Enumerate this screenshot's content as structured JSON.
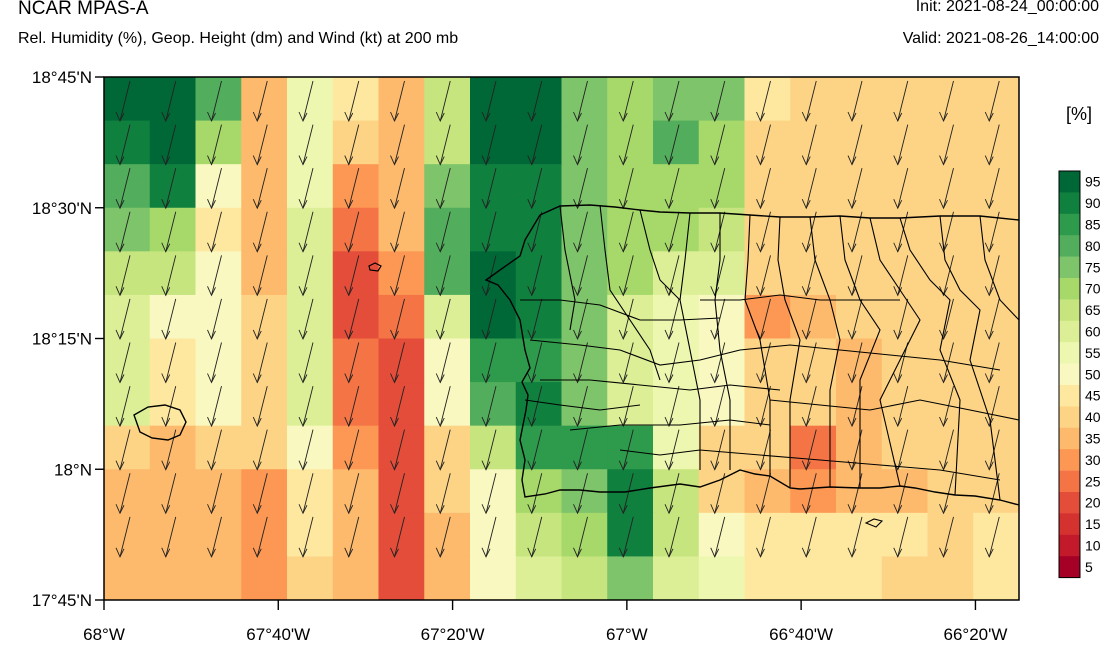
{
  "header": {
    "title": "NCAR MPAS-A",
    "subtitle": "Rel. Humidity (%), Geop. Height (dm) and Wind (kt) at 200 mb",
    "init": "Init: 2021-08-24_00:00:00",
    "valid": "Valid: 2021-08-26_14:00:00"
  },
  "map": {
    "lat_range": [
      17.75,
      18.75
    ],
    "lon_range": [
      -68.0,
      -66.25
    ],
    "lat_ticks": [
      {
        "value": 18.75,
        "label": "18°45'N"
      },
      {
        "value": 18.5,
        "label": "18°30'N"
      },
      {
        "value": 18.25,
        "label": "18°15'N"
      },
      {
        "value": 18.0,
        "label": "18°N"
      },
      {
        "value": 17.75,
        "label": "17°45'N"
      }
    ],
    "lon_ticks": [
      {
        "value": -68.0,
        "label": "68°W"
      },
      {
        "value": -67.6667,
        "label": "67°40'W"
      },
      {
        "value": -67.3333,
        "label": "67°20'W"
      },
      {
        "value": -67.0,
        "label": "67°W"
      },
      {
        "value": -66.6667,
        "label": "66°40'W"
      },
      {
        "value": -66.3333,
        "label": "66°20'W"
      }
    ],
    "grid_rows": [
      [
        95,
        95,
        80,
        35,
        55,
        45,
        35,
        65,
        95,
        95,
        75,
        70,
        75,
        75,
        45,
        40,
        40,
        40,
        40,
        40
      ],
      [
        90,
        95,
        70,
        35,
        55,
        40,
        35,
        65,
        95,
        95,
        75,
        70,
        80,
        70,
        40,
        40,
        40,
        40,
        40,
        40
      ],
      [
        80,
        90,
        50,
        35,
        55,
        30,
        35,
        75,
        90,
        90,
        75,
        70,
        70,
        70,
        40,
        40,
        40,
        40,
        40,
        40
      ],
      [
        75,
        70,
        45,
        35,
        60,
        25,
        35,
        80,
        90,
        90,
        75,
        70,
        70,
        65,
        40,
        40,
        40,
        40,
        40,
        40
      ],
      [
        65,
        65,
        50,
        35,
        60,
        20,
        30,
        80,
        95,
        90,
        75,
        70,
        60,
        60,
        40,
        40,
        40,
        40,
        40,
        40
      ],
      [
        60,
        50,
        50,
        40,
        60,
        20,
        25,
        60,
        95,
        90,
        75,
        60,
        55,
        50,
        30,
        35,
        40,
        40,
        40,
        40
      ],
      [
        60,
        45,
        50,
        40,
        60,
        25,
        20,
        50,
        85,
        85,
        75,
        60,
        55,
        50,
        40,
        40,
        35,
        40,
        40,
        40
      ],
      [
        60,
        45,
        50,
        40,
        60,
        25,
        20,
        50,
        80,
        90,
        75,
        60,
        55,
        50,
        40,
        40,
        35,
        40,
        40,
        40
      ],
      [
        40,
        35,
        40,
        40,
        50,
        30,
        20,
        40,
        65,
        85,
        85,
        85,
        55,
        40,
        40,
        25,
        35,
        40,
        40,
        40
      ],
      [
        35,
        35,
        35,
        30,
        45,
        35,
        20,
        40,
        50,
        70,
        75,
        90,
        65,
        40,
        35,
        30,
        35,
        35,
        40,
        40
      ],
      [
        35,
        35,
        35,
        30,
        45,
        35,
        20,
        35,
        50,
        65,
        70,
        90,
        65,
        50,
        45,
        45,
        45,
        45,
        40,
        45
      ],
      [
        35,
        35,
        35,
        30,
        40,
        35,
        20,
        35,
        50,
        60,
        65,
        75,
        60,
        55,
        45,
        45,
        45,
        40,
        40,
        45
      ]
    ],
    "colorbar": {
      "units": "[%]",
      "labels": [
        "95",
        "90",
        "85",
        "80",
        "75",
        "70",
        "65",
        "60",
        "55",
        "50",
        "45",
        "40",
        "35",
        "30",
        "25",
        "20",
        "15",
        "10",
        "5"
      ],
      "colors": [
        "#006837",
        "#10803f",
        "#2d9a4c",
        "#52ae5c",
        "#7ec46a",
        "#a6d96a",
        "#c6e57e",
        "#dcef96",
        "#eef7b0",
        "#f8f8c0",
        "#fee8a0",
        "#fdd486",
        "#fdb96c",
        "#fc9854",
        "#f47446",
        "#e34d3a",
        "#d4322f",
        "#c21a2b",
        "#a50026"
      ]
    },
    "wind_direction": "NNE"
  }
}
